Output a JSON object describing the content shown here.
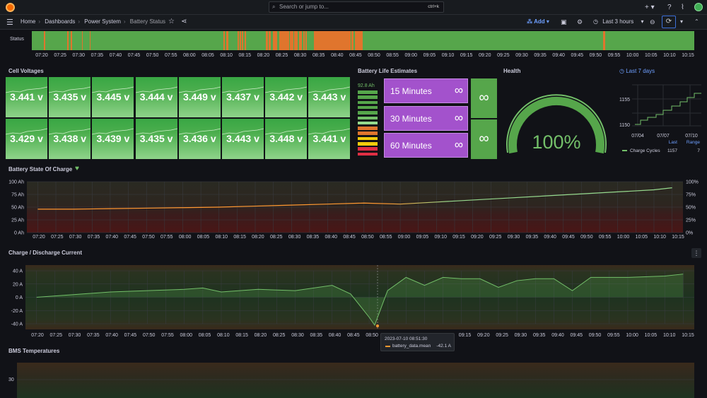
{
  "topbar": {
    "search_placeholder": "Search or jump to...",
    "search_shortcut": "ctrl+k",
    "icons": [
      "grafana-logo-icon",
      "search-icon",
      "plus-icon",
      "help-icon",
      "rss-icon",
      "avatar"
    ]
  },
  "breadcrumb": {
    "items": [
      "Home",
      "Dashboards",
      "Power System",
      "Battery Status"
    ]
  },
  "toolbar": {
    "add_label": "Add",
    "time_range_label": "Last 3 hours"
  },
  "time_ticks": [
    "07:20",
    "07:25",
    "07:30",
    "07:35",
    "07:40",
    "07:45",
    "07:50",
    "07:55",
    "08:00",
    "08:05",
    "08:10",
    "08:15",
    "08:20",
    "08:25",
    "08:30",
    "08:35",
    "08:40",
    "08:45",
    "08:50",
    "08:55",
    "09:00",
    "09:05",
    "09:10",
    "09:15",
    "09:20",
    "09:25",
    "09:30",
    "09:35",
    "09:40",
    "09:45",
    "09:50",
    "09:55",
    "10:00",
    "10:05",
    "10:10",
    "10:15"
  ],
  "status": {
    "label": "Status",
    "color_ok": "#56a64b",
    "color_warn": "#e0752d"
  },
  "cell_voltages": {
    "title": "Cell Voltages",
    "values": [
      "3.441 v",
      "3.435 v",
      "3.445 v",
      "3.444 v",
      "3.449 v",
      "3.437 v",
      "3.442 v",
      "3.443 v",
      "3.429 v",
      "3.438 v",
      "3.439 v",
      "3.435 v",
      "3.436 v",
      "3.443 v",
      "3.448 v",
      "3.441 v"
    ]
  },
  "battery_life": {
    "title": "Battery Life Estimates",
    "gauge_value": "92.8 Ah",
    "estimates": [
      {
        "label": "15 Minutes",
        "value": "∞"
      },
      {
        "label": "30 Minutes",
        "value": "∞"
      },
      {
        "label": "60 Minutes",
        "value": "∞"
      }
    ],
    "extra_values": [
      "∞",
      "∞"
    ]
  },
  "health": {
    "title": "Health",
    "value": "100%",
    "fraction": 1.0
  },
  "charge_cycles": {
    "range_label": "Last 7 days",
    "y_ticks": [
      "1155",
      "1150"
    ],
    "x_ticks": [
      "07/04",
      "07/07",
      "07/10"
    ],
    "legend_headers": [
      "Last",
      "Range"
    ],
    "legend_name": "Charge Cycles",
    "last": "1157",
    "range": "7"
  },
  "soc": {
    "title": "Battery State Of Charge",
    "left_ticks": [
      "100 Ah",
      "75 Ah",
      "50 Ah",
      "25 Ah",
      "0 Ah"
    ],
    "right_ticks": [
      "100%",
      "75%",
      "50%",
      "25%",
      "0%"
    ]
  },
  "current": {
    "title": "Charge / Discharge Current",
    "y_ticks": [
      "40 A",
      "20 A",
      "0 A",
      "-20 A",
      "-40 A"
    ]
  },
  "tooltip": {
    "time": "2023-07-10 08:51:30",
    "series": "battery_data.mean",
    "value": "-42.1 A"
  },
  "bms": {
    "title": "BMS Temperatures",
    "y_ticks": [
      "30"
    ]
  },
  "chart_data": [
    {
      "type": "area",
      "title": "Battery State Of Charge",
      "ylabel": "Ah",
      "ylim": [
        0,
        100
      ],
      "x": [
        "07:20",
        "07:30",
        "07:40",
        "07:50",
        "08:00",
        "08:10",
        "08:20",
        "08:30",
        "08:40",
        "08:50",
        "09:00",
        "09:10",
        "09:20",
        "09:30",
        "09:40",
        "09:50",
        "10:00",
        "10:10",
        "10:15"
      ],
      "series": [
        {
          "values": [
            46,
            46,
            47,
            48,
            49,
            50,
            52,
            54,
            56,
            58,
            56,
            60,
            64,
            68,
            72,
            76,
            80,
            84,
            88
          ]
        }
      ]
    },
    {
      "type": "line",
      "title": "Charge / Discharge Current",
      "ylabel": "A",
      "ylim": [
        -45,
        45
      ],
      "x": [
        "07:20",
        "07:30",
        "07:40",
        "07:50",
        "08:00",
        "08:05",
        "08:10",
        "08:20",
        "08:30",
        "08:40",
        "08:45",
        "08:50",
        "08:51:30",
        "08:55",
        "09:00",
        "09:05",
        "09:10",
        "09:15",
        "09:20",
        "09:25",
        "09:30",
        "09:35",
        "09:40",
        "09:45",
        "09:50",
        "10:00",
        "10:10",
        "10:15"
      ],
      "series": [
        {
          "name": "battery_data.mean",
          "values": [
            0,
            4,
            8,
            10,
            12,
            14,
            8,
            12,
            10,
            18,
            5,
            -30,
            -42.1,
            10,
            30,
            18,
            30,
            28,
            28,
            15,
            25,
            28,
            28,
            10,
            30,
            30,
            32,
            35
          ]
        }
      ]
    }
  ]
}
